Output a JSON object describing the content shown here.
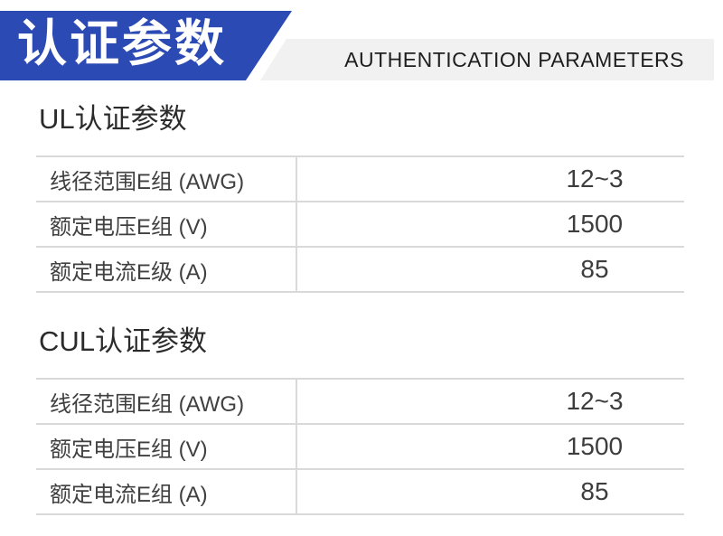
{
  "header": {
    "banner_title": "认证参数",
    "banner_subtitle": "AUTHENTICATION PARAMETERS",
    "banner_color": "#2b4ab3",
    "subtitle_bar_color": "#f1f1f1"
  },
  "sections": [
    {
      "title": "UL认证参数",
      "rows": [
        {
          "label": "线径范围E组 (AWG)",
          "value": "12~3"
        },
        {
          "label": "额定电压E组 (V)",
          "value": "1500"
        },
        {
          "label": "额定电流E级 (A)",
          "value": "85"
        }
      ]
    },
    {
      "title": "CUL认证参数",
      "rows": [
        {
          "label": "线径范围E组 (AWG)",
          "value": "12~3"
        },
        {
          "label": "额定电压E组 (V)",
          "value": "1500"
        },
        {
          "label": "额定电流E组 (A)",
          "value": "85"
        }
      ]
    }
  ]
}
